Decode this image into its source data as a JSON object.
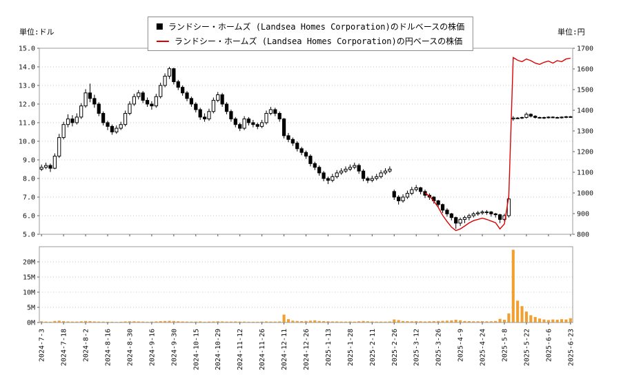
{
  "header": {
    "unit_left": "単位:ドル",
    "unit_right": "単位:円"
  },
  "chart_data": {
    "type": "candlestick",
    "title": "",
    "grid": true,
    "legend_position": "top-center",
    "x_labels": [
      "2024-7-3",
      "2024-7-18",
      "2024-8-2",
      "2024-8-16",
      "2024-8-30",
      "2024-9-16",
      "2024-9-30",
      "2024-10-15",
      "2024-10-29",
      "2024-11-12",
      "2024-11-26",
      "2024-12-11",
      "2024-12-26",
      "2025-1-13",
      "2025-1-28",
      "2025-2-11",
      "2025-2-26",
      "2025-3-12",
      "2025-3-26",
      "2025-4-9",
      "2025-4-24",
      "2025-5-8",
      "2025-5-22",
      "2025-6-6",
      "2025-6-23"
    ],
    "label_step": 5,
    "axes": {
      "price": {
        "unit": "単位:ドル",
        "min": 5.0,
        "max": 15.0,
        "ticks": [
          "15.0",
          "14.0",
          "13.0",
          "12.0",
          "11.0",
          "10.0",
          "9.0",
          "8.0",
          "7.0",
          "6.0",
          "5.0"
        ]
      },
      "yen": {
        "unit": "単位:円",
        "min": 800,
        "max": 1700,
        "ticks": [
          "1700",
          "1600",
          "1500",
          "1400",
          "1300",
          "1200",
          "1100",
          "1000",
          "900",
          "800"
        ]
      },
      "volume": {
        "min": 0,
        "max": 25,
        "ticks": [
          "20M",
          "15M",
          "10M",
          "5M",
          "0M"
        ]
      }
    },
    "series": [
      {
        "name": "ランドシー・ホームズ (Landsea Homes Corporation)のドルベースの株価",
        "type": "ohlc",
        "axis": "price",
        "up_color": "#ffffff",
        "down_color": "#000000",
        "outline": "#000000",
        "ohlc": [
          [
            8.5,
            8.75,
            8.4,
            8.6
          ],
          [
            8.6,
            8.85,
            8.5,
            8.7
          ],
          [
            8.7,
            8.8,
            8.35,
            8.55
          ],
          [
            8.55,
            9.35,
            8.5,
            9.2
          ],
          [
            9.2,
            10.4,
            9.1,
            10.2
          ],
          [
            10.2,
            11.05,
            10.1,
            10.9
          ],
          [
            10.9,
            11.45,
            10.75,
            11.2
          ],
          [
            11.2,
            11.4,
            10.8,
            11.0
          ],
          [
            11.0,
            11.5,
            10.9,
            11.3
          ],
          [
            11.3,
            12.05,
            11.2,
            11.9
          ],
          [
            11.9,
            12.8,
            11.8,
            12.6
          ],
          [
            12.6,
            13.1,
            12.1,
            12.3
          ],
          [
            12.3,
            12.5,
            11.8,
            12.0
          ],
          [
            12.0,
            12.1,
            11.35,
            11.5
          ],
          [
            11.5,
            11.6,
            10.85,
            11.0
          ],
          [
            11.0,
            11.1,
            10.6,
            10.8
          ],
          [
            10.8,
            10.9,
            10.35,
            10.5
          ],
          [
            10.5,
            10.85,
            10.4,
            10.7
          ],
          [
            10.7,
            11.05,
            10.6,
            10.9
          ],
          [
            10.9,
            11.65,
            10.8,
            11.5
          ],
          [
            11.5,
            12.15,
            11.4,
            12.0
          ],
          [
            12.0,
            12.55,
            11.9,
            12.4
          ],
          [
            12.4,
            12.75,
            12.25,
            12.6
          ],
          [
            12.6,
            12.7,
            12.05,
            12.2
          ],
          [
            12.2,
            12.35,
            11.85,
            12.0
          ],
          [
            12.0,
            12.15,
            11.7,
            11.9
          ],
          [
            11.9,
            12.55,
            11.8,
            12.4
          ],
          [
            12.4,
            13.15,
            12.3,
            13.0
          ],
          [
            13.0,
            13.65,
            12.9,
            13.5
          ],
          [
            13.5,
            14.0,
            13.35,
            13.9
          ],
          [
            13.9,
            13.95,
            13.05,
            13.2
          ],
          [
            13.2,
            13.3,
            12.75,
            12.9
          ],
          [
            12.9,
            13.0,
            12.45,
            12.6
          ],
          [
            12.6,
            12.7,
            12.15,
            12.3
          ],
          [
            12.3,
            12.4,
            11.85,
            12.0
          ],
          [
            12.0,
            12.1,
            11.55,
            11.7
          ],
          [
            11.7,
            11.8,
            11.15,
            11.3
          ],
          [
            11.3,
            11.5,
            11.05,
            11.2
          ],
          [
            11.2,
            11.75,
            11.1,
            11.6
          ],
          [
            11.6,
            12.35,
            11.5,
            12.2
          ],
          [
            12.2,
            12.65,
            12.1,
            12.5
          ],
          [
            12.5,
            12.6,
            11.85,
            12.0
          ],
          [
            12.0,
            12.1,
            11.45,
            11.6
          ],
          [
            11.6,
            11.7,
            11.05,
            11.2
          ],
          [
            11.2,
            11.3,
            10.75,
            10.9
          ],
          [
            10.9,
            11.0,
            10.55,
            10.7
          ],
          [
            10.7,
            11.35,
            10.6,
            11.2
          ],
          [
            11.2,
            11.3,
            10.85,
            11.0
          ],
          [
            11.0,
            11.15,
            10.75,
            10.9
          ],
          [
            10.9,
            11.0,
            10.65,
            10.8
          ],
          [
            10.8,
            11.15,
            10.7,
            11.0
          ],
          [
            11.0,
            11.65,
            10.9,
            11.5
          ],
          [
            11.5,
            11.85,
            11.4,
            11.7
          ],
          [
            11.7,
            11.8,
            11.35,
            11.5
          ],
          [
            11.5,
            11.6,
            11.05,
            11.2
          ],
          [
            11.2,
            11.25,
            10.15,
            10.3
          ],
          [
            10.3,
            10.45,
            9.95,
            10.1
          ],
          [
            10.1,
            10.2,
            9.75,
            9.9
          ],
          [
            9.9,
            10.0,
            9.45,
            9.6
          ],
          [
            9.6,
            9.7,
            9.25,
            9.4
          ],
          [
            9.4,
            9.5,
            9.05,
            9.2
          ],
          [
            9.2,
            9.3,
            8.65,
            8.8
          ],
          [
            8.8,
            8.9,
            8.45,
            8.6
          ],
          [
            8.6,
            8.7,
            8.15,
            8.3
          ],
          [
            8.3,
            8.4,
            7.85,
            8.0
          ],
          [
            8.0,
            8.1,
            7.7,
            7.9
          ],
          [
            7.9,
            8.25,
            7.8,
            8.1
          ],
          [
            8.1,
            8.45,
            8.0,
            8.3
          ],
          [
            8.3,
            8.55,
            8.2,
            8.4
          ],
          [
            8.4,
            8.65,
            8.3,
            8.5
          ],
          [
            8.5,
            8.75,
            8.4,
            8.6
          ],
          [
            8.6,
            8.85,
            8.5,
            8.7
          ],
          [
            8.7,
            8.8,
            8.25,
            8.4
          ],
          [
            8.4,
            8.5,
            7.85,
            8.0
          ],
          [
            8.0,
            8.1,
            7.75,
            7.9
          ],
          [
            7.9,
            8.15,
            7.8,
            8.0
          ],
          [
            8.0,
            8.25,
            7.9,
            8.1
          ],
          [
            8.1,
            8.45,
            8.0,
            8.3
          ],
          [
            8.3,
            8.55,
            8.2,
            8.4
          ],
          [
            8.4,
            8.65,
            8.3,
            8.5
          ],
          [
            7.3,
            7.4,
            6.85,
            7.0
          ],
          [
            7.0,
            7.1,
            6.6,
            6.8
          ],
          [
            6.8,
            7.15,
            6.7,
            7.0
          ],
          [
            7.0,
            7.35,
            6.9,
            7.2
          ],
          [
            7.2,
            7.55,
            7.1,
            7.4
          ],
          [
            7.4,
            7.65,
            7.3,
            7.5
          ],
          [
            7.5,
            7.55,
            7.15,
            7.3
          ],
          [
            7.3,
            7.4,
            6.95,
            7.1
          ],
          [
            7.1,
            7.2,
            6.85,
            7.0
          ],
          [
            7.0,
            7.05,
            6.65,
            6.8
          ],
          [
            6.8,
            6.85,
            6.45,
            6.6
          ],
          [
            6.6,
            6.65,
            6.15,
            6.3
          ],
          [
            6.3,
            6.4,
            5.95,
            6.1
          ],
          [
            6.1,
            6.15,
            5.75,
            5.9
          ],
          [
            5.9,
            5.95,
            5.3,
            5.6
          ],
          [
            5.6,
            5.9,
            5.45,
            5.8
          ],
          [
            5.8,
            6.0,
            5.6,
            5.9
          ],
          [
            5.9,
            6.1,
            5.75,
            6.0
          ],
          [
            6.0,
            6.2,
            5.9,
            6.1
          ],
          [
            6.1,
            6.25,
            6.0,
            6.15
          ],
          [
            6.15,
            6.3,
            6.05,
            6.2
          ],
          [
            6.2,
            6.3,
            6.05,
            6.2
          ],
          [
            6.2,
            6.25,
            5.95,
            6.1
          ],
          [
            6.1,
            6.15,
            5.9,
            6.05
          ],
          [
            6.05,
            6.1,
            5.6,
            5.8
          ],
          [
            5.8,
            6.1,
            5.7,
            6.0
          ],
          [
            6.0,
            7.1,
            5.9,
            6.9
          ],
          [
            11.2,
            11.35,
            11.1,
            11.25
          ],
          [
            11.25,
            11.3,
            11.2,
            11.25
          ],
          [
            11.25,
            11.32,
            11.2,
            11.28
          ],
          [
            11.28,
            11.55,
            11.22,
            11.45
          ],
          [
            11.45,
            11.5,
            11.28,
            11.35
          ],
          [
            11.35,
            11.4,
            11.22,
            11.28
          ],
          [
            11.28,
            11.32,
            11.22,
            11.26
          ],
          [
            11.26,
            11.32,
            11.2,
            11.28
          ],
          [
            11.28,
            11.34,
            11.22,
            11.3
          ],
          [
            11.3,
            11.34,
            11.24,
            11.28
          ],
          [
            11.28,
            11.32,
            11.22,
            11.26
          ],
          [
            11.26,
            11.34,
            11.22,
            11.3
          ],
          [
            11.3,
            11.36,
            11.24,
            11.32
          ],
          [
            11.32,
            11.36,
            11.26,
            11.3
          ]
        ]
      },
      {
        "name": "ランドシー・ホームズ (Landsea Homes Corporation)の円ベースの株価",
        "type": "line",
        "axis": "yen",
        "color": "#dd0000",
        "start_index": 87,
        "values": [
          1000,
          985,
          960,
          930,
          892,
          862,
          835,
          818,
          826,
          840,
          855,
          866,
          872,
          878,
          872,
          864,
          856,
          826,
          850,
          985,
          1655,
          1642,
          1635,
          1648,
          1640,
          1628,
          1622,
          1632,
          1638,
          1628,
          1640,
          1635,
          1648,
          1652
        ]
      },
      {
        "type": "bar",
        "axis": "volume",
        "color": "#f0a030",
        "values": [
          0.4,
          0.3,
          0.25,
          0.5,
          0.6,
          0.45,
          0.35,
          0.3,
          0.3,
          0.4,
          0.5,
          0.45,
          0.35,
          0.3,
          0.3,
          0.25,
          0.25,
          0.2,
          0.25,
          0.35,
          0.4,
          0.4,
          0.35,
          0.3,
          0.25,
          0.3,
          0.35,
          0.45,
          0.5,
          0.55,
          0.5,
          0.4,
          0.35,
          0.3,
          0.3,
          0.3,
          0.35,
          0.25,
          0.3,
          0.35,
          0.4,
          0.35,
          0.3,
          0.3,
          0.35,
          0.3,
          0.3,
          0.25,
          0.25,
          0.25,
          0.3,
          0.35,
          0.3,
          0.3,
          0.35,
          2.6,
          1.1,
          0.6,
          0.5,
          0.45,
          0.5,
          0.6,
          0.7,
          0.5,
          0.45,
          0.4,
          0.35,
          0.35,
          0.3,
          0.3,
          0.35,
          0.3,
          0.4,
          0.5,
          0.4,
          0.35,
          0.3,
          0.3,
          0.3,
          0.35,
          1.0,
          0.8,
          0.5,
          0.45,
          0.4,
          0.45,
          0.4,
          0.35,
          0.4,
          0.45,
          0.5,
          0.55,
          0.6,
          0.7,
          0.9,
          0.7,
          0.5,
          0.45,
          0.4,
          0.4,
          0.45,
          0.4,
          0.4,
          0.5,
          1.2,
          0.9,
          3.0,
          24.0,
          7.2,
          5.4,
          3.6,
          2.4,
          1.8,
          1.3,
          1.0,
          0.8,
          1.0,
          0.9,
          1.1,
          1.0,
          1.4
        ]
      }
    ]
  }
}
